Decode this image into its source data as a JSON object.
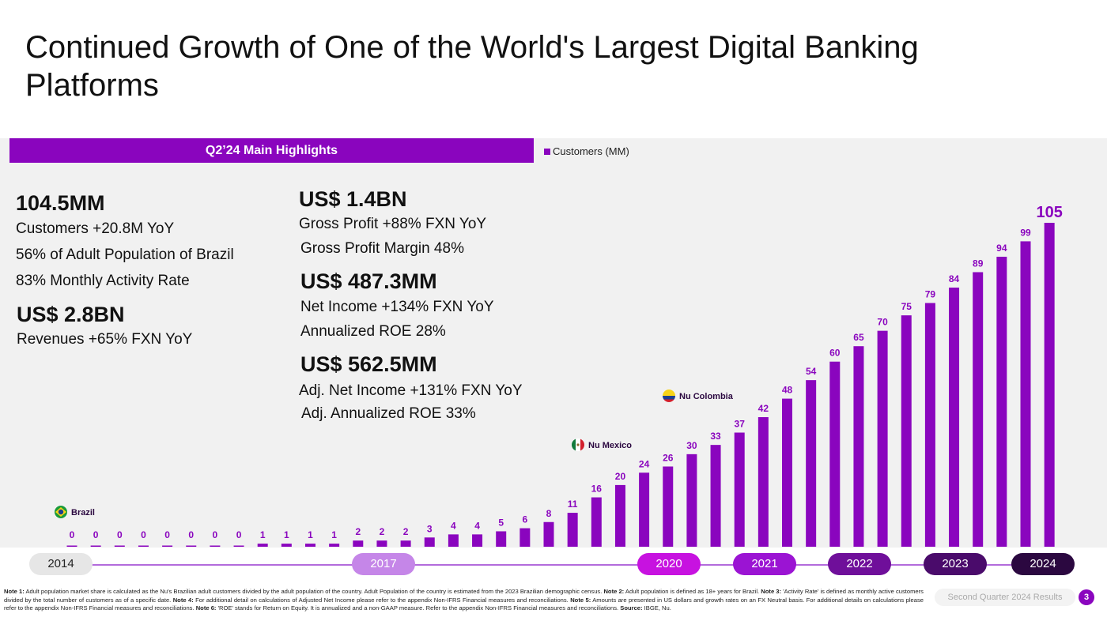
{
  "title": "Continued Growth of One of the World's Largest Digital Banking Platforms",
  "highlights": {
    "header": "Q2’24 Main Highlights",
    "customers_value": "104.5MM",
    "customers_yoy": "Customers +20.8M YoY",
    "adult_population": "56% of Adult Population of Brazil",
    "activity_rate": "83% Monthly Activity Rate",
    "revenues_value": "US$ 2.8BN",
    "revenues_yoy": "Revenues +65%  FXN YoY",
    "gross_profit_value": "US$ 1.4BN",
    "gross_profit_yoy": "Gross Profit +88%  FXN YoY",
    "gross_profit_margin": "Gross Profit Margin 48%",
    "net_income_value": "US$ 487.3MM",
    "net_income_yoy": "Net Income +134% FXN YoY",
    "roe": "Annualized ROE 28%",
    "adj_net_income_value": "US$ 562.5MM",
    "adj_net_income_yoy": "Adj. Net Income +131% FXN YoY",
    "adj_roe": "Adj. Annualized ROE 33%"
  },
  "legend": {
    "label": "Customers (MM)"
  },
  "chart_data": {
    "type": "bar",
    "series": [
      {
        "name": "Customers (MM)",
        "color": "#8a05be",
        "values": [
          0,
          0,
          0,
          0,
          0,
          0,
          0,
          0,
          1,
          1,
          1,
          1,
          2,
          2,
          2,
          3,
          4,
          4,
          5,
          6,
          8,
          11,
          16,
          20,
          24,
          26,
          30,
          33,
          37,
          42,
          48,
          54,
          60,
          65,
          70,
          75,
          79,
          84,
          89,
          94,
          99,
          105
        ]
      }
    ],
    "ylim": [
      0,
      105
    ],
    "grid": false,
    "annotations": [
      {
        "text": "Brazil",
        "bar_index": 0,
        "flag": "brazil"
      },
      {
        "text": "Nu Mexico",
        "bar_index": 21,
        "flag": "mexico"
      },
      {
        "text": "Nu Colombia",
        "bar_index": 25,
        "flag": "colombia"
      }
    ],
    "timeline": [
      "2014",
      "2017",
      "2020",
      "2021",
      "2022",
      "2023",
      "2024"
    ]
  },
  "timeline_colors": {
    "2014": "#e6e6e6",
    "2017": "#c586e8",
    "2020": "#c712e0",
    "2021": "#9b14d3",
    "2022": "#6f0f9a",
    "2023": "#4a0b6b",
    "2024": "#2b0840"
  },
  "footnote": [
    {
      "b": "Note 1:",
      "t": " Adult population market share is calculated as the Nu's Brazilian adult customers divided by the adult population of the country. Adult Population of the country is estimated from the 2023 Brazilian demographic census. "
    },
    {
      "b": "Note 2:",
      "t": " Adult population is defined as 18+ years for Brazil. "
    },
    {
      "b": "Note 3:",
      "t": " 'Activity Rate' is defined as monthly active customers divided by the total number of customers as of a specific date. "
    },
    {
      "b": "Note 4:",
      "t": " For additional detail on calculations of Adjusted Net Income please refer to the appendix Non-IFRS Financial measures and reconciliations. "
    },
    {
      "b": "Note 5:",
      "t": " Amounts are presented in US dollars and growth rates on an FX Neutral basis. For additional details on calculations please refer to the appendix Non-IFRS Financial measures and reconciliations. "
    },
    {
      "b": "Note 6:",
      "t": " 'ROE' stands for Return on Equity. It is annualized and a non-GAAP measure. Refer to the appendix Non-IFRS Financial measures and reconciliations.  "
    },
    {
      "b": "Source:",
      "t": " IBGE, Nu."
    }
  ],
  "footer": {
    "label": "Second Quarter 2024 Results",
    "page": "3"
  }
}
